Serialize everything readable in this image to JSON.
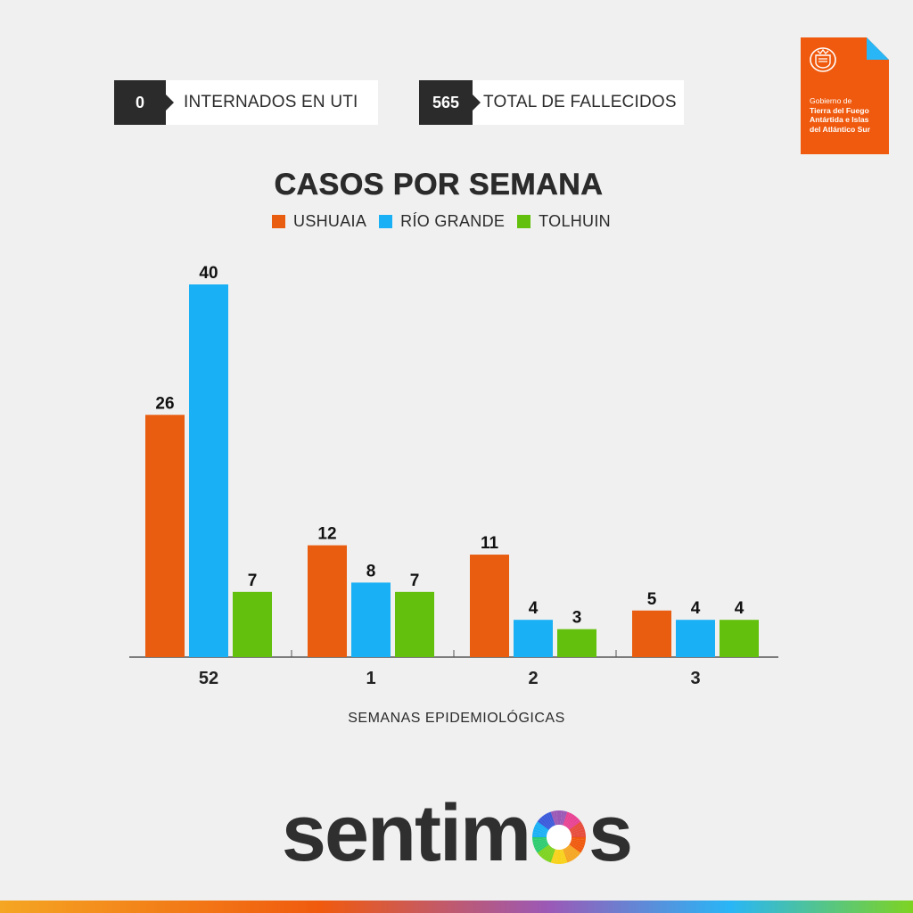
{
  "stats": [
    {
      "value": "0",
      "label": "INTERNADOS EN UTI"
    },
    {
      "value": "565",
      "label": "TOTAL DE FALLECIDOS"
    }
  ],
  "logo": {
    "line1": "Gobierno de",
    "line2": "Tierra del Fuego",
    "line3": "Antártida e Islas",
    "line4": "del Atlántico Sur",
    "color": "#f05a0e",
    "accent": "#29b6f6"
  },
  "brand": {
    "prefix": "sentim",
    "suffix": "s",
    "o_icon": "color-wheel-o-icon"
  },
  "chart_data": {
    "type": "bar",
    "title": "CASOS POR SEMANA",
    "xlabel": "SEMANAS EPIDEMIOLÓGICAS",
    "ylabel": "",
    "categories": [
      "52",
      "1",
      "2",
      "3"
    ],
    "series": [
      {
        "name": "USHUAIA",
        "color": "#e85d10",
        "values": [
          26,
          12,
          11,
          5
        ]
      },
      {
        "name": "RÍO GRANDE",
        "color": "#1ab0f5",
        "values": [
          40,
          8,
          4,
          4
        ]
      },
      {
        "name": "TOLHUIN",
        "color": "#63c00d",
        "values": [
          7,
          7,
          3,
          4
        ]
      }
    ],
    "ylim": [
      0,
      40
    ],
    "grid": false,
    "legend": "top-center",
    "data_labels": true
  }
}
